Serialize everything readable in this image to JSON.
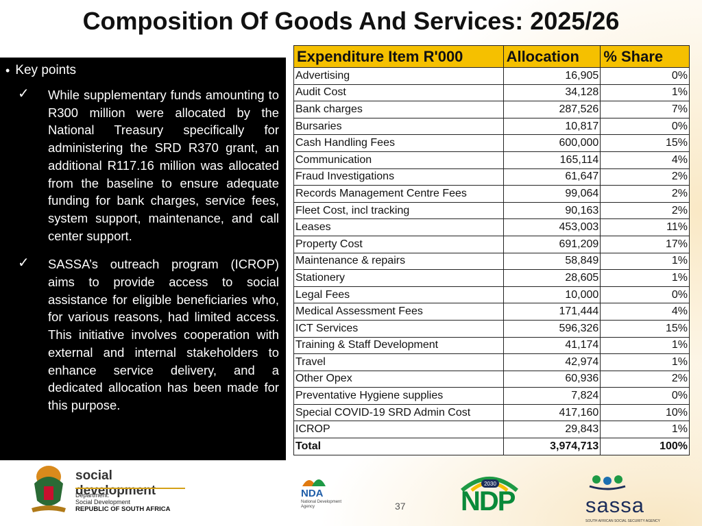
{
  "title": "Composition Of Goods And Services: 2025/26",
  "key_points": {
    "heading": "Key points",
    "points": [
      "While supplementary funds amounting to R300 million were allocated by the National Treasury specifically for administering the SRD R370 grant, an additional R117.16 million was allocated from the baseline to ensure adequate funding for bank charges, service fees, system support, maintenance, and call center support.",
      "SASSA’s outreach program (ICROP) aims to provide access to social assistance for eligible beneficiaries who, for various reasons, had limited access. This initiative involves cooperation with external and internal stakeholders to enhance service delivery, and a dedicated allocation has been made for this purpose."
    ]
  },
  "table": {
    "headers": [
      "Expenditure Item R'000",
      "Allocation",
      "% Share"
    ],
    "rows": [
      [
        "Advertising",
        "16,905",
        "0%"
      ],
      [
        "Audit Cost",
        "34,128",
        "1%"
      ],
      [
        "Bank charges",
        "287,526",
        "7%"
      ],
      [
        "Bursaries",
        "10,817",
        "0%"
      ],
      [
        "Cash Handling Fees",
        "600,000",
        "15%"
      ],
      [
        "Communication",
        "165,114",
        "4%"
      ],
      [
        "Fraud Investigations",
        "61,647",
        "2%"
      ],
      [
        "Records Management Centre Fees",
        "99,064",
        "2%"
      ],
      [
        "Fleet Cost, incl tracking",
        "90,163",
        "2%"
      ],
      [
        "Leases",
        "453,003",
        "11%"
      ],
      [
        "Property Cost",
        "691,209",
        "17%"
      ],
      [
        "Maintenance & repairs",
        "58,849",
        "1%"
      ],
      [
        "Stationery",
        "28,605",
        "1%"
      ],
      [
        "Legal Fees",
        "10,000",
        "0%"
      ],
      [
        "Medical Assessment Fees",
        "171,444",
        "4%"
      ],
      [
        "ICT Services",
        "596,326",
        "15%"
      ],
      [
        "Training & Staff Development",
        "41,174",
        "1%"
      ],
      [
        "Travel",
        "42,974",
        "1%"
      ],
      [
        "Other Opex",
        "60,936",
        "2%"
      ],
      [
        "Preventative Hygiene supplies",
        "7,824",
        "0%"
      ],
      [
        "Special COVID-19 SRD Admin Cost",
        "417,160",
        "10%"
      ],
      [
        "ICROP",
        "29,843",
        "1%"
      ]
    ],
    "total": [
      "Total",
      "3,974,713",
      "100%"
    ]
  },
  "footer": {
    "social_development": {
      "name": "social development",
      "dept": "Department:",
      "dept_name": "Social Development",
      "country": "REPUBLIC OF SOUTH AFRICA"
    },
    "page_number": "37",
    "nda": {
      "name": "NDA",
      "sub": "National Development Agency"
    },
    "ndp": {
      "name": "NDP",
      "year": "2030"
    },
    "sassa": {
      "name": "sassa",
      "sub": "SOUTH AFRICAN SOCIAL SECURITY AGENCY"
    }
  },
  "colors": {
    "header_bg": "#f5c000",
    "panel_bg": "#000000",
    "ndp_green": "#0a8a3a",
    "nda_blue": "#1e5da8",
    "sassa_navy": "#1c2d5a"
  }
}
